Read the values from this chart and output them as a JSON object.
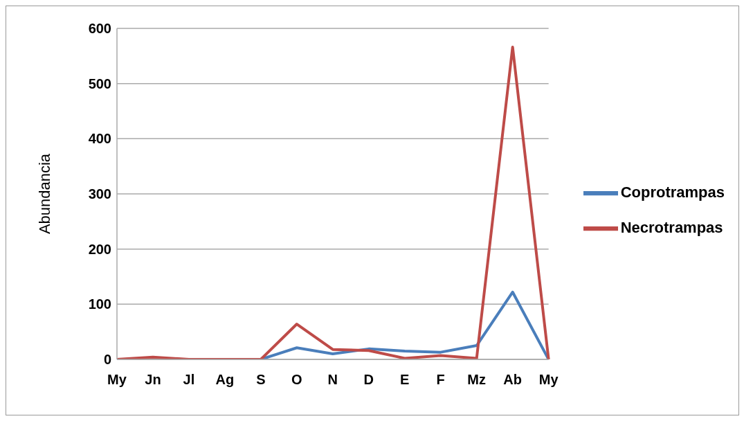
{
  "chart_data": {
    "type": "line",
    "ylabel": "Abundancia",
    "categories": [
      "My",
      "Jn",
      "Jl",
      "Ag",
      "S",
      "O",
      "N",
      "D",
      "E",
      "F",
      "Mz",
      "Ab",
      "My"
    ],
    "series": [
      {
        "name": "Coprotrampas",
        "color": "#4a7ebb",
        "values": [
          null,
          null,
          null,
          0,
          0,
          21,
          10,
          19,
          15,
          13,
          25,
          122,
          0
        ]
      },
      {
        "name": "Necrotrampas",
        "color": "#be4b48",
        "values": [
          0,
          4,
          0,
          0,
          0,
          64,
          18,
          16,
          2,
          7,
          2,
          566,
          0
        ]
      }
    ],
    "ylim": [
      0,
      600
    ],
    "yticks": [
      0,
      100,
      200,
      300,
      400,
      500,
      600
    ],
    "grid": "y",
    "legend": "right",
    "marker": "none",
    "line_style": "solid"
  }
}
